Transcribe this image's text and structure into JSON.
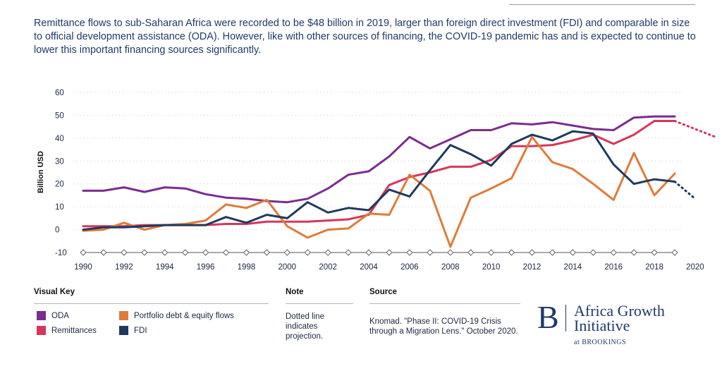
{
  "intro_text": "Remittance flows to sub-Saharan Africa were recorded to be $48 billion in 2019, larger than foreign direct investment (FDI) and comparable in size to official development assistance (ODA). However, like with other sources of financing, the COVID-19 pandemic has and is expected to continue to lower this important financing sources significantly.",
  "chart_data": {
    "type": "line",
    "title": "",
    "xlabel": "",
    "ylabel": "Billion USD",
    "xlim": [
      1989.5,
      2021.5
    ],
    "ylim": [
      -10,
      60
    ],
    "yticks": [
      -10,
      0,
      10,
      20,
      30,
      40,
      50,
      60
    ],
    "xticks": [
      1990,
      1992,
      1994,
      1996,
      1998,
      2000,
      2002,
      2004,
      2006,
      2008,
      2010,
      2012,
      2014,
      2016,
      2018,
      2020
    ],
    "grid": "horizontal dotted",
    "x": [
      1990,
      1991,
      1992,
      1993,
      1994,
      1995,
      1996,
      1997,
      1998,
      1999,
      2000,
      2001,
      2002,
      2003,
      2004,
      2005,
      2006,
      2007,
      2008,
      2009,
      2010,
      2011,
      2012,
      2013,
      2014,
      2015,
      2016,
      2017,
      2018,
      2019
    ],
    "series": [
      {
        "name": "ODA",
        "color": "#7b2c8e",
        "values": [
          17,
          17,
          18.5,
          16.5,
          18.5,
          18,
          15.5,
          14,
          13.5,
          12.5,
          12,
          13.5,
          18,
          24,
          25.5,
          32,
          40.5,
          35.5,
          39.5,
          43.5,
          43.5,
          46.5,
          46,
          47,
          45.5,
          44,
          43.5,
          49,
          49.5,
          49.5
        ],
        "projection": null
      },
      {
        "name": "Remittances",
        "color": "#d7365a",
        "values": [
          1.5,
          1.5,
          1.5,
          2,
          2,
          2,
          2,
          2.5,
          2.5,
          3.5,
          3.5,
          3.5,
          4,
          4.5,
          6.5,
          19.5,
          23,
          25,
          27.5,
          27.5,
          30.5,
          36.5,
          36.5,
          37,
          39,
          41.5,
          37.5,
          41.5,
          47.5,
          47.5
        ],
        "projection": {
          "x": [
            2019,
            2020,
            2021
          ],
          "values": [
            47.5,
            44,
            40.5
          ]
        }
      },
      {
        "name": "Portfolio debt & equity flows",
        "color": "#e07b39",
        "values": [
          -0.5,
          0,
          3,
          0,
          2,
          2.5,
          4,
          11,
          9.5,
          13,
          1.5,
          -3.5,
          0,
          0.5,
          7,
          6.5,
          24,
          17,
          -7.5,
          14,
          18,
          22.5,
          40.5,
          29.5,
          26.5,
          20,
          13,
          33.5,
          15,
          24.5
        ],
        "projection": null
      },
      {
        "name": "FDI",
        "color": "#1e3a5f",
        "values": [
          0,
          1,
          1,
          1.5,
          2,
          2,
          2,
          5.5,
          3,
          6.5,
          5,
          12,
          7.5,
          9.5,
          8.5,
          17.5,
          14.5,
          26,
          37,
          33,
          28,
          37.5,
          41.5,
          39,
          43,
          42,
          28.5,
          20,
          22,
          21
        ],
        "projection": {
          "x": [
            2019,
            2020
          ],
          "values": [
            21,
            13.5
          ]
        }
      }
    ],
    "legend": "bottom-left",
    "note": "Dotted line indicates projection."
  },
  "legend": {
    "title": "Visual Key",
    "items": [
      {
        "label": "ODA",
        "color": "#7b2c8e"
      },
      {
        "label": "Remittances",
        "color": "#d7365a"
      },
      {
        "label": "Portfolio debt & equity flows",
        "color": "#e07b39"
      },
      {
        "label": "FDI",
        "color": "#1e3a5f"
      }
    ]
  },
  "note": {
    "title": "Note",
    "text": "Dotted line indicates projection."
  },
  "source": {
    "title": "Source",
    "text": "Knomad. \"Phase II: COVID-19 Crisis through a Migration Lens.\" October 2020."
  },
  "logo": {
    "letter": "B",
    "line1": "Africa Growth",
    "line2": "Initiative",
    "line3": "at BROOKINGS"
  }
}
